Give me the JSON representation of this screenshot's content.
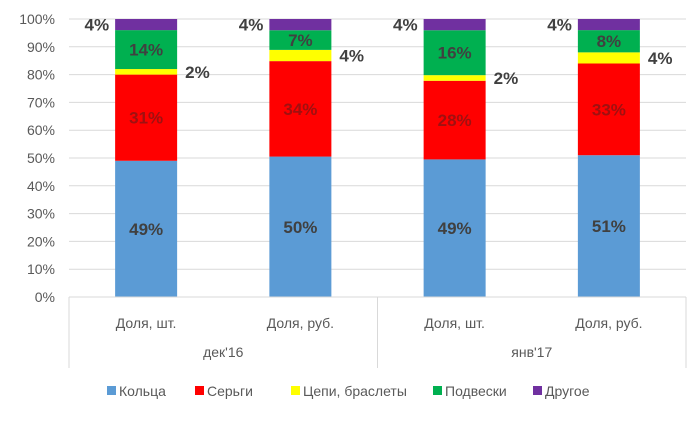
{
  "chart_data": {
    "type": "bar",
    "stacked": "percent",
    "groups": [
      {
        "label": "дек'16",
        "categories": [
          "Доля, шт.",
          "Доля, руб."
        ]
      },
      {
        "label": "янв'17",
        "categories": [
          "Доля, шт.",
          "Доля, руб."
        ]
      }
    ],
    "series": [
      {
        "name": "Кольца",
        "color": "#5b9bd5",
        "values": [
          49,
          50,
          49,
          51
        ],
        "label_position": "inside"
      },
      {
        "name": "Серьги",
        "color": "#ff0000",
        "values": [
          31,
          34,
          28,
          33
        ],
        "label_position": "inside"
      },
      {
        "name": "Цепи, браслеты",
        "color": "#ffff00",
        "values": [
          2,
          4,
          2,
          4
        ],
        "label_position": "right"
      },
      {
        "name": "Подвески",
        "color": "#00b050",
        "values": [
          14,
          7,
          16,
          8
        ],
        "label_position": "inside"
      },
      {
        "name": "Другое",
        "color": "#7030a0",
        "values": [
          4,
          4,
          4,
          4
        ],
        "label_position": "left"
      }
    ],
    "ylim": [
      0,
      100
    ],
    "yticks": [
      "0%",
      "10%",
      "20%",
      "30%",
      "40%",
      "50%",
      "60%",
      "70%",
      "80%",
      "90%",
      "100%"
    ],
    "grid": true,
    "legend": "bottom",
    "title": "",
    "xlabel": "",
    "ylabel": ""
  }
}
